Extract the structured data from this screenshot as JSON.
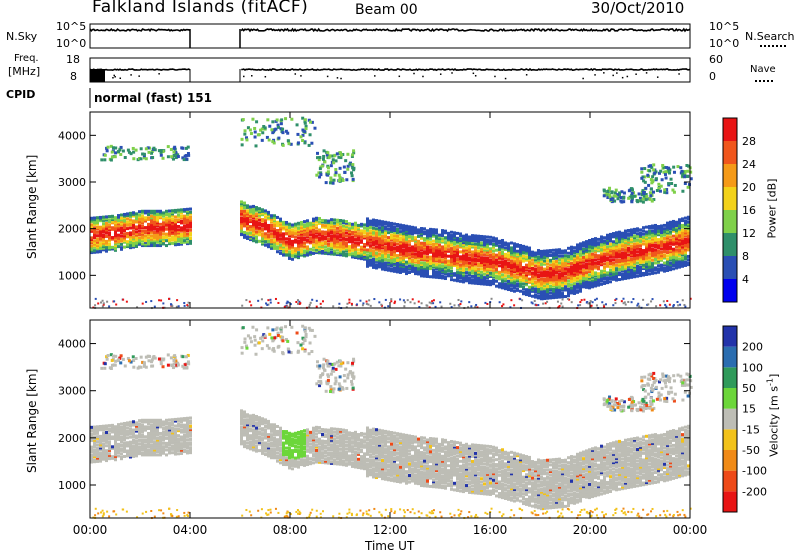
{
  "header": {
    "station": "Falkland Islands (fitACF)",
    "beam": "Beam 00",
    "date": "30/Oct/2010"
  },
  "side_labels": {
    "nsky": "N.Sky",
    "nsearch": "N.Search",
    "freq": "Freq.",
    "freq_unit": "[MHz]",
    "nave": "Nave",
    "cpid": "CPID"
  },
  "cpid_value": "normal (fast) 151",
  "chart_data": [
    {
      "type": "line",
      "name": "noise",
      "y_ticks": [
        "10^5",
        "10^0"
      ],
      "y_ticks_right": [
        "10^5",
        "10^0"
      ],
      "gaps_hours": [
        [
          4.0,
          6.0
        ]
      ]
    },
    {
      "type": "line",
      "name": "frequency-nave",
      "y_ticks": [
        "18",
        "8"
      ],
      "y_ticks_right": [
        "60",
        "0"
      ]
    },
    {
      "type": "heatmap",
      "name": "power",
      "ylabel": "Slant Range [km]",
      "ylim": [
        300,
        4500
      ],
      "y_ticks": [
        1000,
        2000,
        3000,
        4000
      ],
      "colorbar_label": "Power [dB]",
      "colorbar_ticks": [
        4,
        8,
        12,
        16,
        20,
        24,
        28
      ],
      "colorbar_colors": [
        "#0000ee",
        "#2a4fb4",
        "#2f8f6a",
        "#7fd04a",
        "#f3d21a",
        "#f59a18",
        "#f0561c",
        "#e81414"
      ],
      "band_centres_km": [
        [
          0,
          1900
        ],
        [
          1,
          1950
        ],
        [
          2,
          2050
        ],
        [
          3,
          2050
        ],
        [
          4,
          2100
        ],
        [
          6,
          2250
        ],
        [
          7,
          2050
        ],
        [
          8,
          1750
        ],
        [
          9,
          1900
        ],
        [
          10,
          1850
        ],
        [
          11,
          1750
        ],
        [
          12,
          1650
        ],
        [
          13,
          1550
        ],
        [
          14,
          1500
        ],
        [
          15,
          1400
        ],
        [
          16,
          1350
        ],
        [
          17,
          1200
        ],
        [
          18,
          1050
        ],
        [
          19,
          1100
        ],
        [
          20,
          1300
        ],
        [
          21,
          1450
        ],
        [
          22,
          1550
        ],
        [
          23,
          1650
        ],
        [
          24,
          1800
        ]
      ]
    },
    {
      "type": "heatmap",
      "name": "velocity",
      "xlabel": "Time UT",
      "ylabel": "Slant Range [km]",
      "ylim": [
        300,
        4500
      ],
      "y_ticks": [
        1000,
        2000,
        3000,
        4000
      ],
      "x_ticks": [
        "00:00",
        "04:00",
        "08:00",
        "12:00",
        "16:00",
        "20:00",
        "00:00"
      ],
      "colorbar_label": "Velocity [m s-1]",
      "colorbar_ticks": [
        "200",
        "100",
        "50",
        "15",
        "-15",
        "-50",
        "-100",
        "-200"
      ],
      "colorbar_colors": [
        "#2233aa",
        "#2a6db0",
        "#2f9a5a",
        "#6cd63a",
        "#bdbdb5",
        "#f2c21a",
        "#f08a16",
        "#ee4a18",
        "#e81414"
      ]
    }
  ]
}
